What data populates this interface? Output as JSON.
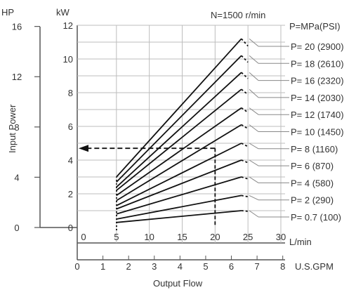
{
  "chart_data": {
    "type": "line",
    "annotation": "N=1500 r/min",
    "xlabel": "Output Flow",
    "ylabel": "Input Power",
    "axes": {
      "hp_unit": "HP",
      "kw_unit": "kW",
      "lmin_unit": "L/min",
      "gpm_unit": "U.S.GPM"
    },
    "hp_ticks": [
      "0",
      "4",
      "8",
      "12",
      "16"
    ],
    "kw_ticks": [
      "0",
      "2",
      "4",
      "6",
      "8",
      "10",
      "12"
    ],
    "lmin_ticks": [
      "0",
      "5",
      "10",
      "15",
      "20",
      "25",
      "30"
    ],
    "gpm_ticks": [
      "0",
      "1",
      "2",
      "3",
      "4",
      "5",
      "6",
      "7",
      "8"
    ],
    "xlim_lmin": [
      0,
      30
    ],
    "ylim_kw": [
      0,
      12
    ],
    "legend_header": "P=MPa(PSI)",
    "series": [
      {
        "name": "P= 20 (2900)",
        "x": [
          5,
          24
        ],
        "y": [
          3.0,
          11.2
        ]
      },
      {
        "name": "P= 18 (2610)",
        "x": [
          5,
          24
        ],
        "y": [
          2.7,
          10.2
        ]
      },
      {
        "name": "P= 16 (2320)",
        "x": [
          5,
          24
        ],
        "y": [
          2.4,
          9.2
        ]
      },
      {
        "name": "P= 14 (2030)",
        "x": [
          5,
          24
        ],
        "y": [
          2.2,
          8.2
        ]
      },
      {
        "name": "P= 12 (1740)",
        "x": [
          5,
          24
        ],
        "y": [
          1.9,
          7.1
        ]
      },
      {
        "name": "P= 10 (1450)",
        "x": [
          5,
          24
        ],
        "y": [
          1.6,
          6.1
        ]
      },
      {
        "name": "P= 8 (1160)",
        "x": [
          5,
          24
        ],
        "y": [
          1.3,
          5.0
        ]
      },
      {
        "name": "P= 6 (870)",
        "x": [
          5,
          24
        ],
        "y": [
          1.1,
          4.0
        ]
      },
      {
        "name": "P= 4 (580)",
        "x": [
          5,
          24
        ],
        "y": [
          0.8,
          3.0
        ]
      },
      {
        "name": "P= 2 (290)",
        "x": [
          5,
          24
        ],
        "y": [
          0.5,
          1.9
        ]
      },
      {
        "name": "P= 0.7 (100)",
        "x": [
          5,
          24
        ],
        "y": [
          0.3,
          1.0
        ]
      }
    ],
    "example": {
      "flow_lmin": 20,
      "power_kw": 4.7
    }
  }
}
